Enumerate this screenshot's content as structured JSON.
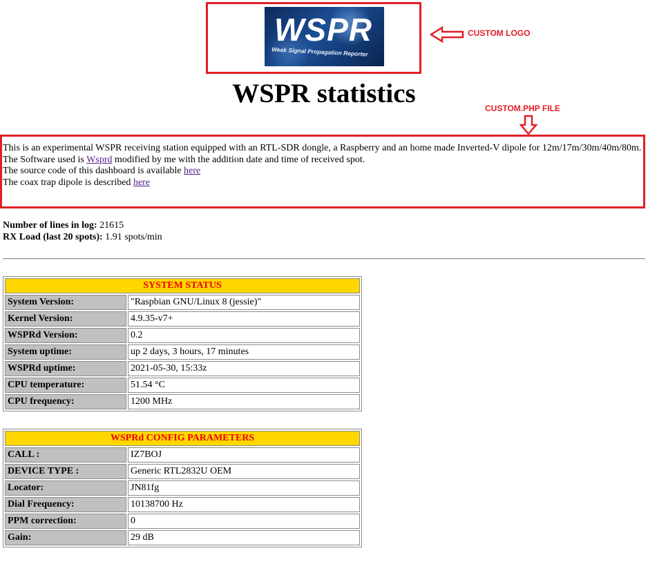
{
  "annotations": {
    "logo_label": "CUSTOM LOGO",
    "custom_label": "CUSTOM.PHP FILE",
    "color": "#e21f26"
  },
  "logo": {
    "text": "WSPR",
    "subtitle": "Weak Signal Propagation Reporter"
  },
  "page_title": "WSPR statistics",
  "intro": {
    "line1": "This is an experimental WSPR receiving station equipped with an RTL-SDR dongle, a Raspberry and an home made Inverted-V dipole for 12m/17m/30m/40m/80m.",
    "line2_before": "The Software used is ",
    "line2_link": "Wsprd",
    "line2_after": " modified by me with the addition date and time of received spot.",
    "line3_before": "The source code of this dashboard is available ",
    "line3_link": "here",
    "line4_before": "The coax trap dipole is described ",
    "line4_link": "here"
  },
  "stats": {
    "lines_label": "Number of lines in log:",
    "lines_value": "21615",
    "load_label": "RX Load (last 20 spots):",
    "load_value": "1.91 spots/min"
  },
  "system_status": {
    "title": "SYSTEM STATUS",
    "rows": [
      {
        "key": "System Version:",
        "value": "\"Raspbian GNU/Linux 8 (jessie)\""
      },
      {
        "key": "Kernel Version:",
        "value": "4.9.35-v7+"
      },
      {
        "key": "WSPRd Version:",
        "value": "0.2"
      },
      {
        "key": "System uptime:",
        "value": "up 2 days, 3 hours, 17 minutes"
      },
      {
        "key": "WSPRd uptime:",
        "value": "2021-05-30, 15:33z"
      },
      {
        "key": "CPU temperature:",
        "value": "51.54 °C"
      },
      {
        "key": "CPU frequency:",
        "value": "1200 MHz"
      }
    ]
  },
  "config": {
    "title": "WSPRd CONFIG PARAMETERS",
    "rows": [
      {
        "key": "CALL :",
        "value": "IZ7BOJ"
      },
      {
        "key": "DEVICE TYPE :",
        "value": "Generic RTL2832U OEM"
      },
      {
        "key": "Locator:",
        "value": "JN81fg"
      },
      {
        "key": "Dial Frequency:",
        "value": "10138700 Hz"
      },
      {
        "key": "PPM correction:",
        "value": "0"
      },
      {
        "key": "Gain:",
        "value": "29 dB"
      }
    ]
  }
}
